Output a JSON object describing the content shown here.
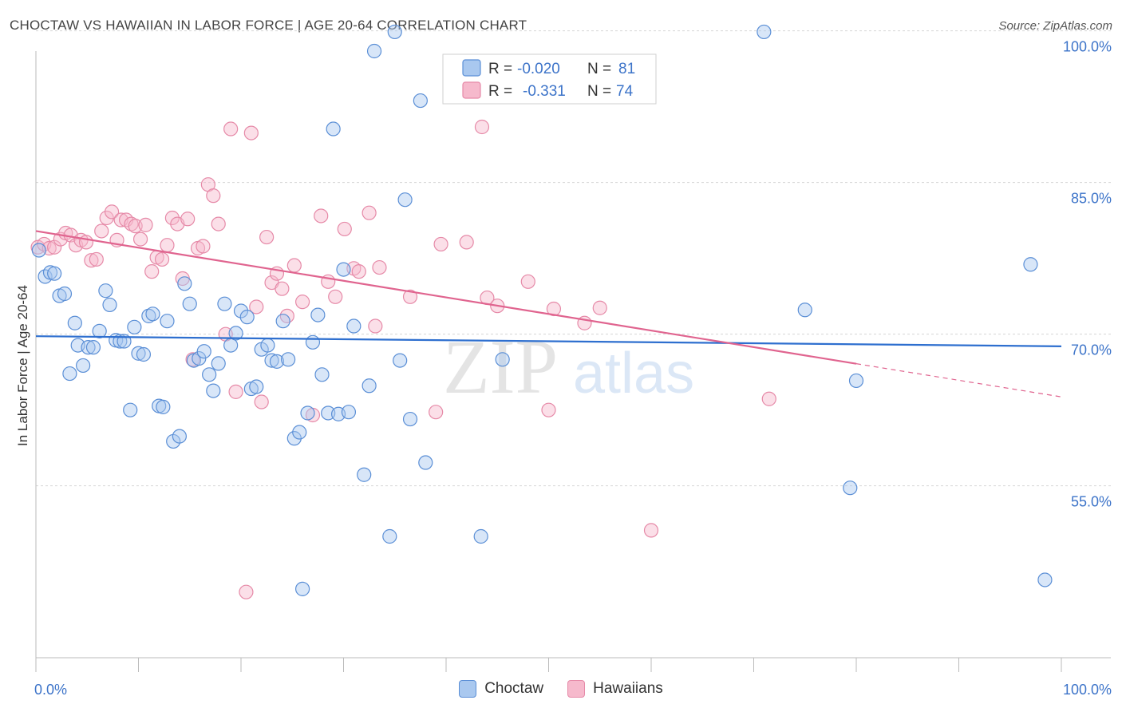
{
  "header": {
    "title": "CHOCTAW VS HAWAIIAN IN LABOR FORCE | AGE 20-64 CORRELATION CHART",
    "source": "Source: ZipAtlas.com"
  },
  "watermark": {
    "zip": "ZIP",
    "atlas": "atlas"
  },
  "stats_box": {
    "rows": [
      {
        "r_label": "R =",
        "r_value": "-0.020",
        "n_label": "N =",
        "n_value": "81"
      },
      {
        "r_label": "R =",
        "r_value": "-0.331",
        "n_label": "N =",
        "n_value": "74"
      }
    ]
  },
  "colors": {
    "choctaw_fill": "#a9c8ef",
    "choctaw_stroke": "#5b8fd6",
    "choctaw_line": "#2e6fcf",
    "hawaiian_fill": "#f6b9cc",
    "hawaiian_stroke": "#e68aa8",
    "hawaiian_line": "#e0648f",
    "axis_text": "#3d74c9",
    "grid": "#d5d5d5"
  },
  "chart_data": {
    "type": "scatter",
    "title": "CHOCTAW VS HAWAIIAN IN LABOR FORCE | AGE 20-64 CORRELATION CHART",
    "xlabel": "",
    "ylabel": "In Labor Force | Age 20-64",
    "xlim": [
      0,
      100
    ],
    "ylim": [
      38,
      98
    ],
    "x_tick_labels": [
      "0.0%",
      "100.0%"
    ],
    "y_ticks": [
      55,
      70,
      85,
      100
    ],
    "y_tick_labels": [
      "55.0%",
      "70.0%",
      "85.0%",
      "100.0%"
    ],
    "grid": true,
    "legend_position": "bottom-center",
    "series": [
      {
        "name": "Choctaw",
        "r": -0.02,
        "n": 81,
        "trend": {
          "x": [
            0,
            100
          ],
          "y": [
            69.8,
            68.8
          ],
          "dashed_from": null
        },
        "points": [
          [
            0.3,
            78.3
          ],
          [
            0.9,
            75.7
          ],
          [
            1.4,
            76.1
          ],
          [
            1.8,
            76.0
          ],
          [
            2.3,
            73.8
          ],
          [
            2.8,
            74.0
          ],
          [
            3.3,
            66.1
          ],
          [
            3.8,
            71.1
          ],
          [
            4.1,
            68.9
          ],
          [
            4.6,
            66.9
          ],
          [
            5.1,
            68.7
          ],
          [
            5.6,
            68.7
          ],
          [
            6.2,
            70.3
          ],
          [
            6.8,
            74.3
          ],
          [
            7.2,
            72.9
          ],
          [
            7.8,
            69.4
          ],
          [
            8.2,
            69.3
          ],
          [
            8.6,
            69.3
          ],
          [
            9.2,
            62.5
          ],
          [
            9.6,
            70.7
          ],
          [
            10.0,
            68.1
          ],
          [
            10.5,
            68.0
          ],
          [
            11.0,
            71.8
          ],
          [
            11.4,
            72.0
          ],
          [
            12.0,
            62.9
          ],
          [
            12.4,
            62.8
          ],
          [
            12.8,
            71.3
          ],
          [
            13.4,
            59.4
          ],
          [
            14.0,
            59.9
          ],
          [
            14.5,
            75.0
          ],
          [
            15.0,
            73.0
          ],
          [
            15.4,
            67.4
          ],
          [
            15.9,
            67.6
          ],
          [
            16.4,
            68.3
          ],
          [
            16.9,
            66.0
          ],
          [
            17.3,
            64.4
          ],
          [
            17.8,
            67.1
          ],
          [
            18.4,
            73.0
          ],
          [
            19.0,
            68.9
          ],
          [
            19.5,
            70.1
          ],
          [
            20.0,
            72.3
          ],
          [
            20.6,
            71.7
          ],
          [
            21.0,
            64.6
          ],
          [
            21.5,
            64.8
          ],
          [
            22.0,
            68.5
          ],
          [
            22.6,
            68.9
          ],
          [
            23.0,
            67.4
          ],
          [
            23.5,
            67.3
          ],
          [
            24.1,
            71.3
          ],
          [
            24.6,
            67.5
          ],
          [
            25.2,
            59.7
          ],
          [
            25.7,
            60.3
          ],
          [
            26.5,
            62.2
          ],
          [
            27.0,
            69.2
          ],
          [
            27.5,
            71.9
          ],
          [
            27.9,
            66.0
          ],
          [
            28.5,
            62.2
          ],
          [
            29.0,
            90.3
          ],
          [
            29.5,
            62.1
          ],
          [
            30.0,
            76.4
          ],
          [
            30.5,
            62.3
          ],
          [
            31.0,
            70.8
          ],
          [
            32.0,
            56.1
          ],
          [
            32.5,
            64.9
          ],
          [
            33.0,
            98.0
          ],
          [
            34.5,
            50.0
          ],
          [
            35.0,
            99.9
          ],
          [
            35.5,
            67.4
          ],
          [
            36.0,
            83.3
          ],
          [
            36.5,
            61.6
          ],
          [
            37.5,
            93.1
          ],
          [
            38.0,
            57.3
          ],
          [
            43.4,
            50.0
          ],
          [
            45.5,
            67.5
          ],
          [
            71.0,
            99.9
          ],
          [
            75.0,
            72.4
          ],
          [
            79.4,
            54.8
          ],
          [
            80.0,
            65.4
          ],
          [
            97.0,
            76.9
          ],
          [
            98.4,
            45.7
          ],
          [
            26.0,
            44.8
          ]
        ]
      },
      {
        "name": "Hawaiians",
        "r": -0.331,
        "n": 74,
        "trend": {
          "x": [
            0,
            100
          ],
          "y": [
            80.2,
            63.8
          ],
          "dashed_from": 80
        },
        "points": [
          [
            0.2,
            78.6
          ],
          [
            0.8,
            78.9
          ],
          [
            1.3,
            78.5
          ],
          [
            1.8,
            78.6
          ],
          [
            2.4,
            79.4
          ],
          [
            2.9,
            80.0
          ],
          [
            3.4,
            79.8
          ],
          [
            3.9,
            78.8
          ],
          [
            4.4,
            79.3
          ],
          [
            4.9,
            79.1
          ],
          [
            5.4,
            77.3
          ],
          [
            5.9,
            77.4
          ],
          [
            6.4,
            80.2
          ],
          [
            6.9,
            81.5
          ],
          [
            7.4,
            82.1
          ],
          [
            7.9,
            79.3
          ],
          [
            8.3,
            81.3
          ],
          [
            8.8,
            81.3
          ],
          [
            9.3,
            80.9
          ],
          [
            9.7,
            80.7
          ],
          [
            10.2,
            79.4
          ],
          [
            10.7,
            80.8
          ],
          [
            11.3,
            76.2
          ],
          [
            11.8,
            77.6
          ],
          [
            12.3,
            77.4
          ],
          [
            12.8,
            78.8
          ],
          [
            13.3,
            81.5
          ],
          [
            13.8,
            80.9
          ],
          [
            14.3,
            75.5
          ],
          [
            14.8,
            81.4
          ],
          [
            15.3,
            67.5
          ],
          [
            15.8,
            78.5
          ],
          [
            16.3,
            78.7
          ],
          [
            16.8,
            84.8
          ],
          [
            17.3,
            83.7
          ],
          [
            17.8,
            80.9
          ],
          [
            18.5,
            70.0
          ],
          [
            19.0,
            90.3
          ],
          [
            19.5,
            64.3
          ],
          [
            20.5,
            44.5
          ],
          [
            21.0,
            89.9
          ],
          [
            21.5,
            72.7
          ],
          [
            22.0,
            63.3
          ],
          [
            22.5,
            79.6
          ],
          [
            23.0,
            75.1
          ],
          [
            23.5,
            76.0
          ],
          [
            24.0,
            74.5
          ],
          [
            24.5,
            71.8
          ],
          [
            25.2,
            76.8
          ],
          [
            26.0,
            73.2
          ],
          [
            27.0,
            62.0
          ],
          [
            27.8,
            81.7
          ],
          [
            28.5,
            75.2
          ],
          [
            29.2,
            73.7
          ],
          [
            30.1,
            80.4
          ],
          [
            31.0,
            76.5
          ],
          [
            31.5,
            76.2
          ],
          [
            32.5,
            82.0
          ],
          [
            33.1,
            70.8
          ],
          [
            33.5,
            76.6
          ],
          [
            36.5,
            73.7
          ],
          [
            39.0,
            62.3
          ],
          [
            39.5,
            78.9
          ],
          [
            42.0,
            79.1
          ],
          [
            43.5,
            90.5
          ],
          [
            44.0,
            73.6
          ],
          [
            45.0,
            72.8
          ],
          [
            48.0,
            75.2
          ],
          [
            50.0,
            62.5
          ],
          [
            50.5,
            72.5
          ],
          [
            53.5,
            71.1
          ],
          [
            55.0,
            72.6
          ],
          [
            60.0,
            50.6
          ],
          [
            71.5,
            63.6
          ]
        ]
      }
    ]
  }
}
